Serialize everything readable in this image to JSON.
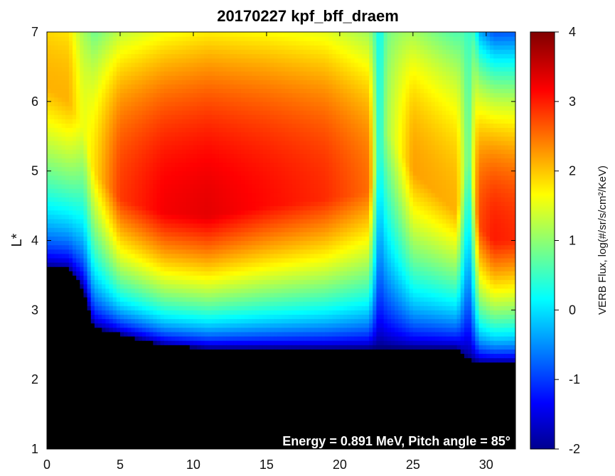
{
  "chart_data": {
    "type": "heatmap",
    "title": "20170227  kpf_bff_draem",
    "ylabel": "L*",
    "xlabel": "",
    "xlim": [
      0,
      32
    ],
    "ylim": [
      1,
      7
    ],
    "x_ticks": [
      0,
      5,
      10,
      15,
      20,
      25,
      30
    ],
    "y_ticks": [
      1,
      2,
      3,
      4,
      5,
      6,
      7
    ],
    "colorbar": {
      "label": "VERB Flux, log(#/sr/s/cm²/KeV)",
      "range": [
        -2,
        4
      ],
      "ticks": [
        -2,
        -1,
        0,
        1,
        2,
        3,
        4
      ],
      "colormap": "jet"
    },
    "annotation": "Energy = 0.891 MeV, Pitch angle = 85°",
    "grid": false,
    "profile_x": [
      0,
      1.5,
      2.5,
      3.2,
      5,
      8,
      11,
      15,
      19,
      22,
      22.7,
      23.2,
      25,
      28,
      28.8,
      29.5,
      30.5,
      32
    ],
    "inner_boundary_L": [
      3.62,
      3.6,
      3.3,
      2.75,
      2.65,
      2.5,
      2.45,
      2.45,
      2.45,
      2.45,
      2.45,
      2.45,
      2.45,
      2.45,
      2.3,
      2.25,
      2.25,
      2.25
    ],
    "peak_L": [
      6.2,
      6.0,
      5.6,
      5.0,
      4.6,
      4.4,
      4.35,
      4.5,
      4.6,
      4.7,
      5.2,
      5.6,
      5.0,
      4.4,
      5.3,
      4.2,
      4.0,
      4.0
    ],
    "peak_log_flux": [
      2.2,
      2.2,
      1.6,
      1.9,
      2.9,
      3.3,
      3.4,
      3.2,
      3.0,
      2.6,
      0.3,
      1.2,
      2.3,
      2.2,
      0.7,
      2.8,
      3.1,
      3.0
    ],
    "outer_width_L": [
      2.4,
      2.6,
      2.6,
      2.6,
      3.2,
      3.6,
      3.8,
      3.6,
      3.4,
      3.0,
      2.6,
      2.6,
      2.8,
      3.0,
      2.6,
      2.6,
      2.6,
      2.6
    ]
  }
}
